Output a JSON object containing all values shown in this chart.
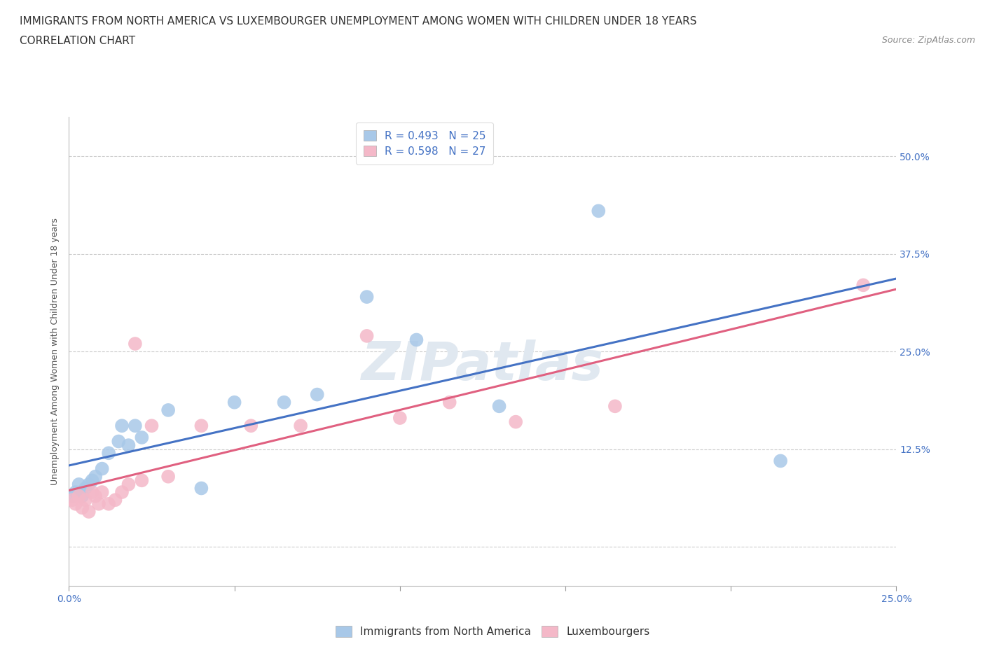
{
  "title_line1": "IMMIGRANTS FROM NORTH AMERICA VS LUXEMBOURGER UNEMPLOYMENT AMONG WOMEN WITH CHILDREN UNDER 18 YEARS",
  "title_line2": "CORRELATION CHART",
  "source_text": "Source: ZipAtlas.com",
  "ylabel": "Unemployment Among Women with Children Under 18 years",
  "xlim": [
    0.0,
    0.25
  ],
  "ylim": [
    -0.05,
    0.55
  ],
  "xticks": [
    0.0,
    0.05,
    0.1,
    0.15,
    0.2,
    0.25
  ],
  "xticklabels": [
    "0.0%",
    "",
    "",
    "",
    "",
    "25.0%"
  ],
  "ytick_positions": [
    0.0,
    0.125,
    0.25,
    0.375,
    0.5
  ],
  "yticklabels": [
    "",
    "12.5%",
    "25.0%",
    "37.5%",
    "50.0%"
  ],
  "R_blue": 0.493,
  "N_blue": 25,
  "R_pink": 0.598,
  "N_pink": 27,
  "color_blue": "#a8c8e8",
  "color_pink": "#f4b8c8",
  "line_blue": "#4472c4",
  "line_pink": "#e06080",
  "scatter_blue_x": [
    0.001,
    0.002,
    0.003,
    0.004,
    0.005,
    0.006,
    0.007,
    0.008,
    0.01,
    0.012,
    0.015,
    0.016,
    0.018,
    0.02,
    0.022,
    0.03,
    0.04,
    0.05,
    0.065,
    0.075,
    0.09,
    0.105,
    0.13,
    0.16,
    0.215
  ],
  "scatter_blue_y": [
    0.065,
    0.07,
    0.08,
    0.065,
    0.075,
    0.08,
    0.085,
    0.09,
    0.1,
    0.12,
    0.135,
    0.155,
    0.13,
    0.155,
    0.14,
    0.175,
    0.075,
    0.185,
    0.185,
    0.195,
    0.32,
    0.265,
    0.18,
    0.43,
    0.11
  ],
  "scatter_pink_x": [
    0.001,
    0.002,
    0.003,
    0.004,
    0.005,
    0.006,
    0.007,
    0.008,
    0.009,
    0.01,
    0.012,
    0.014,
    0.016,
    0.018,
    0.02,
    0.022,
    0.025,
    0.03,
    0.04,
    0.055,
    0.07,
    0.09,
    0.1,
    0.115,
    0.135,
    0.165,
    0.24
  ],
  "scatter_pink_y": [
    0.06,
    0.055,
    0.065,
    0.05,
    0.06,
    0.045,
    0.07,
    0.065,
    0.055,
    0.07,
    0.055,
    0.06,
    0.07,
    0.08,
    0.26,
    0.085,
    0.155,
    0.09,
    0.155,
    0.155,
    0.155,
    0.27,
    0.165,
    0.185,
    0.16,
    0.18,
    0.335
  ],
  "watermark": "ZIPatlas",
  "background_color": "#ffffff",
  "grid_color": "#cccccc",
  "title_fontsize": 11,
  "axis_label_fontsize": 9,
  "tick_fontsize": 10,
  "legend_fontsize": 11
}
